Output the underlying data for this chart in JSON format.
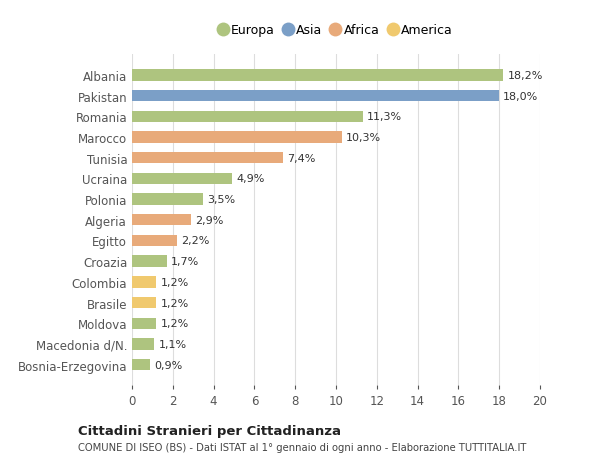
{
  "categories": [
    "Albania",
    "Pakistan",
    "Romania",
    "Marocco",
    "Tunisia",
    "Ucraina",
    "Polonia",
    "Algeria",
    "Egitto",
    "Croazia",
    "Colombia",
    "Brasile",
    "Moldova",
    "Macedonia d/N.",
    "Bosnia-Erzegovina"
  ],
  "values": [
    18.2,
    18.0,
    11.3,
    10.3,
    7.4,
    4.9,
    3.5,
    2.9,
    2.2,
    1.7,
    1.2,
    1.2,
    1.2,
    1.1,
    0.9
  ],
  "labels": [
    "18,2%",
    "18,0%",
    "11,3%",
    "10,3%",
    "7,4%",
    "4,9%",
    "3,5%",
    "2,9%",
    "2,2%",
    "1,7%",
    "1,2%",
    "1,2%",
    "1,2%",
    "1,1%",
    "0,9%"
  ],
  "continents": [
    "Europa",
    "Asia",
    "Europa",
    "Africa",
    "Africa",
    "Europa",
    "Europa",
    "Africa",
    "Africa",
    "Europa",
    "America",
    "America",
    "Europa",
    "Europa",
    "Europa"
  ],
  "colors": {
    "Europa": "#aec47f",
    "Asia": "#7b9fc7",
    "Africa": "#e8aa7a",
    "America": "#f0c96e"
  },
  "legend_order": [
    "Europa",
    "Asia",
    "Africa",
    "America"
  ],
  "title": "Cittadini Stranieri per Cittadinanza",
  "subtitle": "COMUNE DI ISEO (BS) - Dati ISTAT al 1° gennaio di ogni anno - Elaborazione TUTTITALIA.IT",
  "xlim": [
    0,
    20
  ],
  "xticks": [
    0,
    2,
    4,
    6,
    8,
    10,
    12,
    14,
    16,
    18,
    20
  ],
  "bg_color": "#ffffff",
  "grid_color": "#dddddd"
}
